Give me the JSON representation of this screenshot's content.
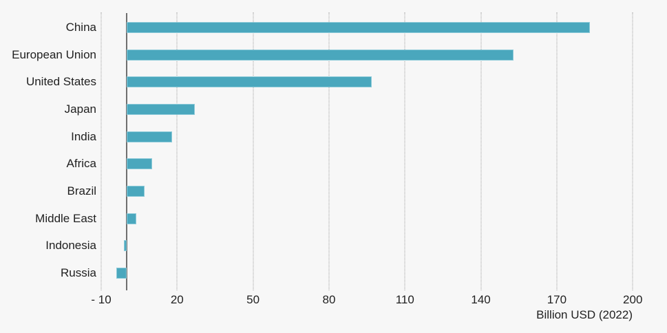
{
  "chart_data": {
    "type": "bar",
    "orientation": "horizontal",
    "title": "",
    "xlabel": "Billion USD (2022)",
    "ylabel": "",
    "categories": [
      "China",
      "European Union",
      "United States",
      "Japan",
      "India",
      "Africa",
      "Brazil",
      "Middle East",
      "Indonesia",
      "Russia"
    ],
    "values": [
      183,
      153,
      97,
      27,
      18,
      10,
      7,
      4,
      -1,
      -4
    ],
    "xlim": [
      -10,
      210
    ],
    "xticks": [
      -10,
      20,
      50,
      80,
      110,
      140,
      170,
      200
    ],
    "xtick_labels": [
      "- 10",
      "20",
      "50",
      "80",
      "110",
      "140",
      "170",
      "200"
    ],
    "grid": "vertical-dotted",
    "legend": "none",
    "colors": {
      "bar": "#4aa7bd",
      "bar_edge": "#8ecbd9",
      "background": "#f7f7f7",
      "zero_axis": "#6f6f6f",
      "gridline": "#9e9e9e",
      "text": "#212121"
    }
  }
}
